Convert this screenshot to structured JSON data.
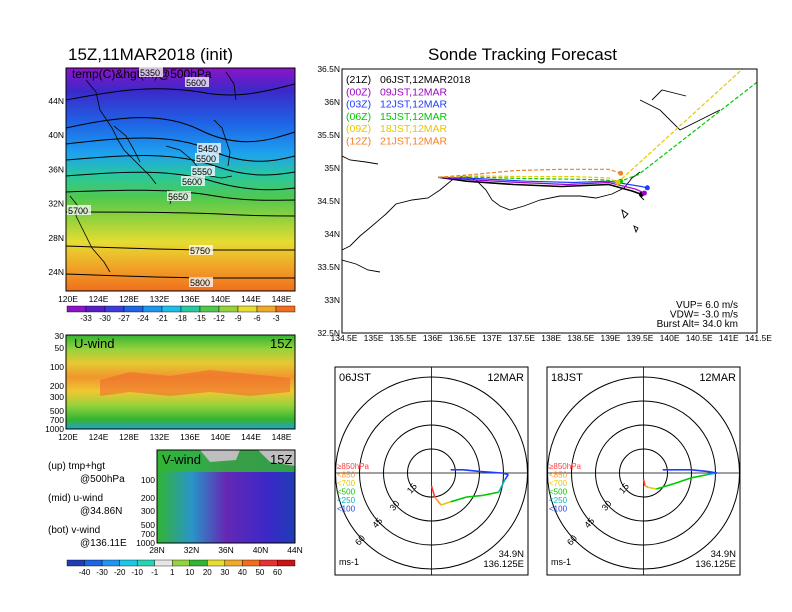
{
  "left": {
    "title": "15Z,11MAR2018 (init)",
    "map_label": "temp(C)&hgt(m)@500hPa",
    "x_ticks": [
      "120E",
      "124E",
      "128E",
      "132E",
      "136E",
      "140E",
      "144E",
      "148E"
    ],
    "y_ticks": [
      "44N",
      "40N",
      "36N",
      "32N",
      "28N",
      "24N"
    ],
    "contour_labels": [
      "5350",
      "5600",
      "5450",
      "5500",
      "5550",
      "5600",
      "5650",
      "5700",
      "5750",
      "5800"
    ],
    "temp_colorbar": [
      "-33",
      "-30",
      "-27",
      "-24",
      "-21",
      "-18",
      "-15",
      "-12",
      "-9",
      "-6",
      "-3"
    ],
    "u_panel_label": "U-wind",
    "u_panel_time": "15Z",
    "u_y_ticks": [
      "30",
      "50",
      "100",
      "200",
      "300",
      "500",
      "700",
      "1000"
    ],
    "v_panel_label": "V-wind",
    "v_panel_time": "15Z",
    "v_y_ticks": [
      "100",
      "200",
      "300",
      "500",
      "700",
      "1000"
    ],
    "v_x_ticks": [
      "28N",
      "32N",
      "36N",
      "40N",
      "44N"
    ],
    "wind_colorbar": [
      "-40",
      "-30",
      "-20",
      "-10",
      "-1",
      "1",
      "10",
      "20",
      "30",
      "40",
      "50",
      "60"
    ],
    "legend": [
      "(up) tmp+hgt",
      "@500hPa",
      "(mid) u-wind",
      "@34.86N",
      "(bot) v-wind",
      "@136.11E"
    ]
  },
  "right": {
    "title": "Sonde Tracking Forecast",
    "x_ticks": [
      "134.5E",
      "135E",
      "135.5E",
      "136E",
      "136.5E",
      "137E",
      "137.5E",
      "138E",
      "138.5E",
      "139E",
      "139.5E",
      "140E",
      "140.5E",
      "141E",
      "141.5E"
    ],
    "y_ticks": [
      "36.5N",
      "36N",
      "35.5N",
      "35N",
      "34.5N",
      "34N",
      "33.5N",
      "33N",
      "32.5N"
    ],
    "launches": [
      {
        "run": "(21Z)",
        "time": "06JST,12MAR2018",
        "color": "#000000"
      },
      {
        "run": "(00Z)",
        "time": "09JST,12MAR",
        "color": "#a000c8"
      },
      {
        "run": "(03Z)",
        "time": "12JST,12MAR",
        "color": "#1e3cff"
      },
      {
        "run": "(06Z)",
        "time": "15JST,12MAR",
        "color": "#00c800"
      },
      {
        "run": "(09Z)",
        "time": "18JST,12MAR",
        "color": "#e6c800"
      },
      {
        "run": "(12Z)",
        "time": "21JST,12MAR",
        "color": "#f08228"
      }
    ],
    "params": [
      "VUP= 6.0 m/s",
      "VDW= -3.0 m/s",
      "Burst Alt= 34.0 km"
    ]
  },
  "hodographs": [
    {
      "time": "06JST",
      "date": "12MAR",
      "rings": [
        "15",
        "30",
        "45",
        "60"
      ],
      "unit": "ms-1",
      "lat": "34.9N",
      "lon": "136.125E"
    },
    {
      "time": "18JST",
      "date": "12MAR",
      "rings": [
        "15",
        "30",
        "45",
        "60"
      ],
      "unit": "ms-1",
      "lat": "34.9N",
      "lon": "136.125E"
    }
  ],
  "hodo_levels": [
    {
      "label": "≥850hPa",
      "color": "#ff3c3c"
    },
    {
      "label": "<850",
      "color": "#ff9632"
    },
    {
      "label": "<700",
      "color": "#e6c800"
    },
    {
      "label": "<500",
      "color": "#00c800"
    },
    {
      "label": "<250",
      "color": "#00b4c8"
    },
    {
      "label": "<100",
      "color": "#1e3cff"
    }
  ],
  "chart_data": [
    {
      "type": "heatmap",
      "title": "15Z,11MAR2018 (init)",
      "label": "temp(C)&hgt(m)@500hPa",
      "x_range": [
        "120E",
        "150E"
      ],
      "y_range": [
        "22N",
        "46N"
      ],
      "colorbar": [
        -33,
        -30,
        -27,
        -24,
        -21,
        -18,
        -15,
        -12,
        -9,
        -6,
        -3
      ],
      "contours": [
        5350,
        5450,
        5500,
        5550,
        5600,
        5650,
        5700,
        5750,
        5800
      ]
    },
    {
      "type": "heatmap",
      "label": "U-wind",
      "time": "15Z",
      "y_levels_hPa": [
        30,
        50,
        100,
        200,
        300,
        500,
        700,
        1000
      ],
      "x_range": [
        "120E",
        "150E"
      ]
    },
    {
      "type": "heatmap",
      "label": "V-wind",
      "time": "15Z",
      "y_levels_hPa": [
        100,
        200,
        300,
        500,
        700,
        1000
      ],
      "x_range": [
        "28N",
        "44N"
      ],
      "colorbar": [
        -40,
        -30,
        -20,
        -10,
        -1,
        1,
        10,
        20,
        30,
        40,
        50,
        60
      ]
    },
    {
      "type": "line",
      "title": "Sonde Tracking Forecast",
      "xlim": [
        134.5,
        141.5
      ],
      "ylim": [
        32.5,
        36.5
      ],
      "series": [
        {
          "name": "(21Z) 06JST,12MAR2018",
          "points": [
            [
              136.125,
              34.86
            ],
            [
              136.6,
              34.8
            ],
            [
              137.4,
              34.75
            ],
            [
              138.2,
              34.72
            ],
            [
              139.0,
              34.75
            ],
            [
              139.4,
              34.65
            ],
            [
              139.55,
              34.6
            ]
          ]
        },
        {
          "name": "(00Z) 09JST,12MAR",
          "points": [
            [
              136.125,
              34.86
            ],
            [
              136.7,
              34.82
            ],
            [
              137.5,
              34.78
            ],
            [
              138.3,
              34.75
            ],
            [
              139.0,
              34.78
            ],
            [
              139.45,
              34.68
            ],
            [
              139.6,
              34.62
            ]
          ]
        },
        {
          "name": "(03Z) 12JST,12MAR",
          "points": [
            [
              136.125,
              34.86
            ],
            [
              136.8,
              34.84
            ],
            [
              137.6,
              34.8
            ],
            [
              138.4,
              34.78
            ],
            [
              139.0,
              34.8
            ],
            [
              139.55,
              34.72
            ],
            [
              139.65,
              34.7
            ]
          ]
        },
        {
          "name": "(06Z) 15JST,12MAR",
          "points": [
            [
              136.125,
              34.86
            ],
            [
              136.8,
              34.86
            ],
            [
              137.6,
              34.84
            ],
            [
              138.4,
              34.83
            ],
            [
              138.9,
              34.82
            ],
            [
              139.2,
              34.8
            ],
            [
              139.5,
              34.9
            ],
            [
              141.5,
              36.3
            ]
          ]
        },
        {
          "name": "(09Z) 18JST,12MAR",
          "points": [
            [
              136.125,
              34.86
            ],
            [
              136.8,
              34.88
            ],
            [
              137.6,
              34.87
            ],
            [
              138.4,
              34.87
            ],
            [
              139.0,
              34.85
            ],
            [
              139.15,
              34.78
            ],
            [
              141.5,
              36.7
            ]
          ]
        },
        {
          "name": "(12Z) 21JST,12MAR",
          "points": [
            [
              136.125,
              34.86
            ],
            [
              136.7,
              34.9
            ],
            [
              137.4,
              34.96
            ],
            [
              138.2,
              34.98
            ],
            [
              139.0,
              34.98
            ],
            [
              139.2,
              34.92
            ]
          ]
        }
      ]
    },
    {
      "type": "line",
      "title": "06JST 12MAR",
      "rings": [
        15,
        30,
        45,
        60
      ],
      "hodograph": [
        [
          0,
          -8
        ],
        [
          2,
          -15
        ],
        [
          6,
          -20
        ],
        [
          12,
          -18
        ],
        [
          22,
          -15
        ],
        [
          32,
          -14
        ],
        [
          42,
          -12
        ],
        [
          46,
          -4
        ],
        [
          48,
          -1
        ],
        [
          44,
          0
        ],
        [
          30,
          1
        ],
        [
          20,
          2
        ],
        [
          12,
          2
        ]
      ]
    },
    {
      "type": "line",
      "title": "18JST 12MAR",
      "rings": [
        15,
        30,
        45,
        60
      ],
      "hodograph": [
        [
          0,
          -4
        ],
        [
          1,
          -8
        ],
        [
          3,
          -9
        ],
        [
          8,
          -10
        ],
        [
          18,
          -7
        ],
        [
          30,
          -3
        ],
        [
          40,
          -1
        ],
        [
          46,
          0
        ],
        [
          40,
          1
        ],
        [
          30,
          2
        ],
        [
          20,
          2
        ],
        [
          12,
          2
        ]
      ]
    }
  ]
}
